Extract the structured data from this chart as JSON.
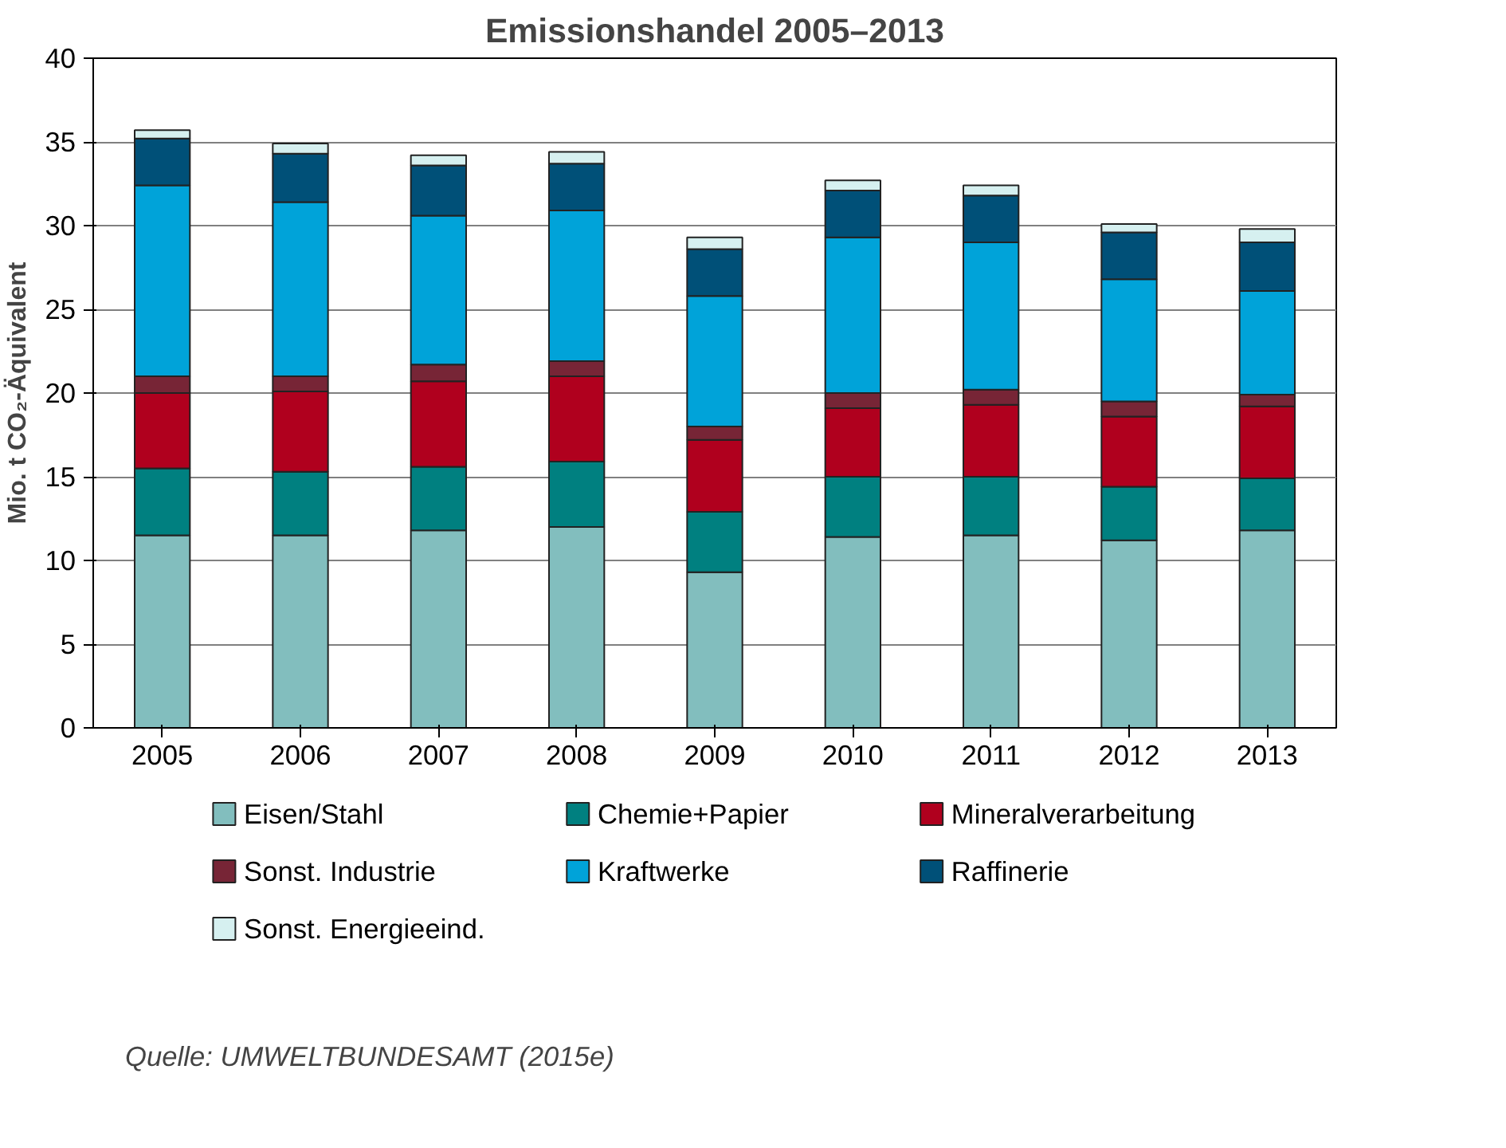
{
  "chart_data": {
    "type": "bar",
    "stacked": true,
    "title": "Emissionshandel 2005–2013",
    "ylabel": "Mio. t CO₂-Äquivalent",
    "categories": [
      "2005",
      "2006",
      "2007",
      "2008",
      "2009",
      "2010",
      "2011",
      "2012",
      "2013"
    ],
    "series": [
      {
        "name": "Eisen/Stahl",
        "color": "#82bebe",
        "values": [
          11.5,
          11.5,
          11.8,
          12.0,
          9.3,
          11.4,
          11.5,
          11.2,
          11.8
        ]
      },
      {
        "name": "Chemie+Papier",
        "color": "#008080",
        "values": [
          4.0,
          3.8,
          3.8,
          3.9,
          3.6,
          3.6,
          3.5,
          3.2,
          3.1
        ]
      },
      {
        "name": "Mineralverarbeitung",
        "color": "#b0001e",
        "values": [
          4.5,
          4.8,
          5.1,
          5.1,
          4.3,
          4.1,
          4.3,
          4.2,
          4.3
        ]
      },
      {
        "name": "Sonst. Industrie",
        "color": "#772536",
        "values": [
          1.0,
          0.9,
          1.0,
          0.9,
          0.8,
          0.9,
          0.9,
          0.9,
          0.7
        ]
      },
      {
        "name": "Kraftwerke",
        "color": "#00a3d9",
        "values": [
          11.4,
          10.4,
          8.9,
          9.0,
          7.8,
          9.3,
          8.8,
          7.3,
          6.2
        ]
      },
      {
        "name": "Raffinerie",
        "color": "#005078",
        "values": [
          2.8,
          2.9,
          3.0,
          2.8,
          2.8,
          2.8,
          2.8,
          2.8,
          2.9
        ]
      },
      {
        "name": "Sonst. Energieeind.",
        "color": "#d6f0f0",
        "values": [
          0.5,
          0.6,
          0.6,
          0.7,
          0.7,
          0.6,
          0.6,
          0.5,
          0.8
        ]
      }
    ],
    "ylim": [
      0,
      40
    ],
    "yticks": [
      0,
      5,
      10,
      15,
      20,
      25,
      30,
      35,
      40
    ],
    "grid": "y",
    "legend": "bottom",
    "annotations": [
      "Quelle: UMWELTBUNDESAMT (2015e)"
    ]
  }
}
